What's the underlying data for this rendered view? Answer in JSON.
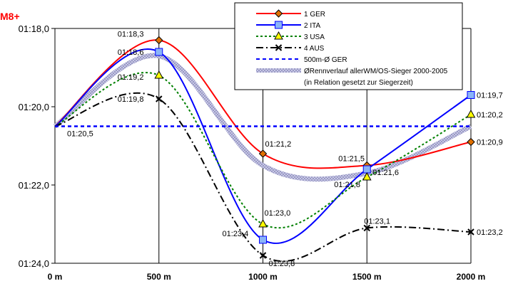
{
  "chart_data": {
    "type": "line",
    "title": "M8+",
    "x": [
      "0 m",
      "500 m",
      "1000 m",
      "1500 m",
      "2000 m"
    ],
    "y_ticks": [
      "01:18,0",
      "01:20,0",
      "01:22,0",
      "01:24,0"
    ],
    "ylim": [
      78.0,
      84.0
    ],
    "y_inverted": true,
    "grid": "vertical",
    "legend_position": "top-right",
    "series": [
      {
        "name": "1 GER",
        "values": [
          80.5,
          78.3,
          81.2,
          81.5,
          80.9
        ],
        "labels": [
          "",
          "01:18,3",
          "01:21,2",
          "01:21,5",
          "01:20,9"
        ],
        "color": "#ff0000",
        "style": "solid",
        "marker": "diamond",
        "marker_color": "#e07000"
      },
      {
        "name": "2 ITA",
        "values": [
          80.5,
          78.6,
          83.4,
          81.6,
          79.7
        ],
        "labels": [
          "",
          "01:18,6",
          "01:23,4",
          "01:21,6",
          "01:19,7"
        ],
        "color": "#0000ff",
        "style": "solid",
        "marker": "square",
        "marker_color": "#8ab4f8"
      },
      {
        "name": "3 USA",
        "values": [
          80.5,
          79.2,
          83.0,
          81.8,
          80.2
        ],
        "labels": [
          "",
          "01:19,2",
          "01:23,0",
          "01:21,8",
          "01:20,2"
        ],
        "color": "#008000",
        "style": "dotted",
        "marker": "triangle",
        "marker_color": "#ffff00"
      },
      {
        "name": "4 AUS",
        "values": [
          80.5,
          79.8,
          83.8,
          83.1,
          83.2
        ],
        "labels": [
          "01:20,5",
          "01:19,8",
          "01:23,8",
          "01:23,1",
          "01:23,2"
        ],
        "color": "#000000",
        "style": "dashdot",
        "marker": "x",
        "marker_color": "#000000"
      },
      {
        "name": "500m-Ø GER",
        "values": [
          80.5,
          80.5,
          80.5,
          80.5,
          80.5
        ],
        "labels": [
          "",
          "",
          "",
          "",
          ""
        ],
        "color": "#0000ff",
        "style": "dashed",
        "marker": "none",
        "marker_color": ""
      },
      {
        "name": "ØRennverlauf allerWM/OS-Sieger 2000-2005",
        "name_line2": "(in Relation gesetzt zur Siegerzeit)",
        "values": [
          80.5,
          78.7,
          81.5,
          81.7,
          80.5
        ],
        "labels": [
          "",
          "",
          "",
          "",
          ""
        ],
        "color": "#b8b8d8",
        "style": "band",
        "marker": "none",
        "marker_color": ""
      }
    ]
  }
}
